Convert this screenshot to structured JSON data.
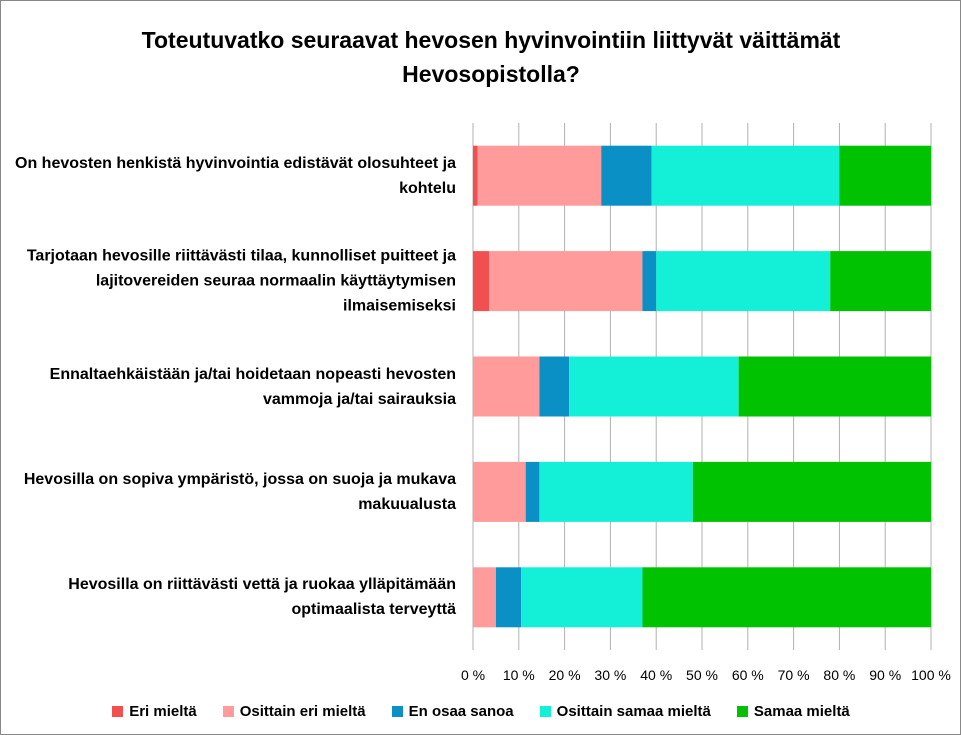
{
  "chart_data": {
    "type": "stacked_bar_horizontal",
    "title": "Toteutuvatko seuraavat hevosen hyvinvointiin liittyvät väittämät Hevosopistolla?",
    "categories": [
      "On hevosten henkistä hyvinvointia edistävät olosuhteet ja kohtelu",
      "Tarjotaan hevosille riittävästi tilaa, kunnolliset puitteet ja lajitovereiden seuraa normaalin käyttäytymisen ilmaisemiseksi",
      "Ennaltaehkäistään ja/tai hoidetaan nopeasti hevosten vammoja ja/tai sairauksia",
      "Hevosilla on sopiva ympäristö, jossa on suoja ja mukava makuualusta",
      "Hevosilla on riittävästi vettä ja ruokaa ylläpitämään optimaalista terveyttä"
    ],
    "series": [
      {
        "name": "Eri mieltä",
        "color": "#f25050",
        "values": [
          1,
          3.5,
          0,
          0,
          0
        ]
      },
      {
        "name": "Osittain eri mieltä",
        "color": "#ff9b9b",
        "values": [
          27,
          33.5,
          14.5,
          11.5,
          5
        ]
      },
      {
        "name": "En osaa sanoa",
        "color": "#0a90c4",
        "values": [
          11,
          3,
          6.5,
          3,
          5.5
        ]
      },
      {
        "name": "Osittain samaa mieltä",
        "color": "#14f0d8",
        "values": [
          41,
          38,
          37,
          33.5,
          26.5
        ]
      },
      {
        "name": "Samaa mieltä",
        "color": "#00c200",
        "values": [
          20,
          22,
          42,
          52,
          63
        ]
      }
    ],
    "xlim": [
      0,
      100
    ],
    "xticks": [
      {
        "value": 0,
        "label": "0 %"
      },
      {
        "value": 10,
        "label": "10 %"
      },
      {
        "value": 20,
        "label": "20 %"
      },
      {
        "value": 30,
        "label": "30 %"
      },
      {
        "value": 40,
        "label": "40 %"
      },
      {
        "value": 50,
        "label": "50 %"
      },
      {
        "value": 60,
        "label": "60 %"
      },
      {
        "value": 70,
        "label": "70 %"
      },
      {
        "value": 80,
        "label": "80 %"
      },
      {
        "value": 90,
        "label": "90 %"
      },
      {
        "value": 100,
        "label": "100 %"
      }
    ],
    "grid": true
  }
}
